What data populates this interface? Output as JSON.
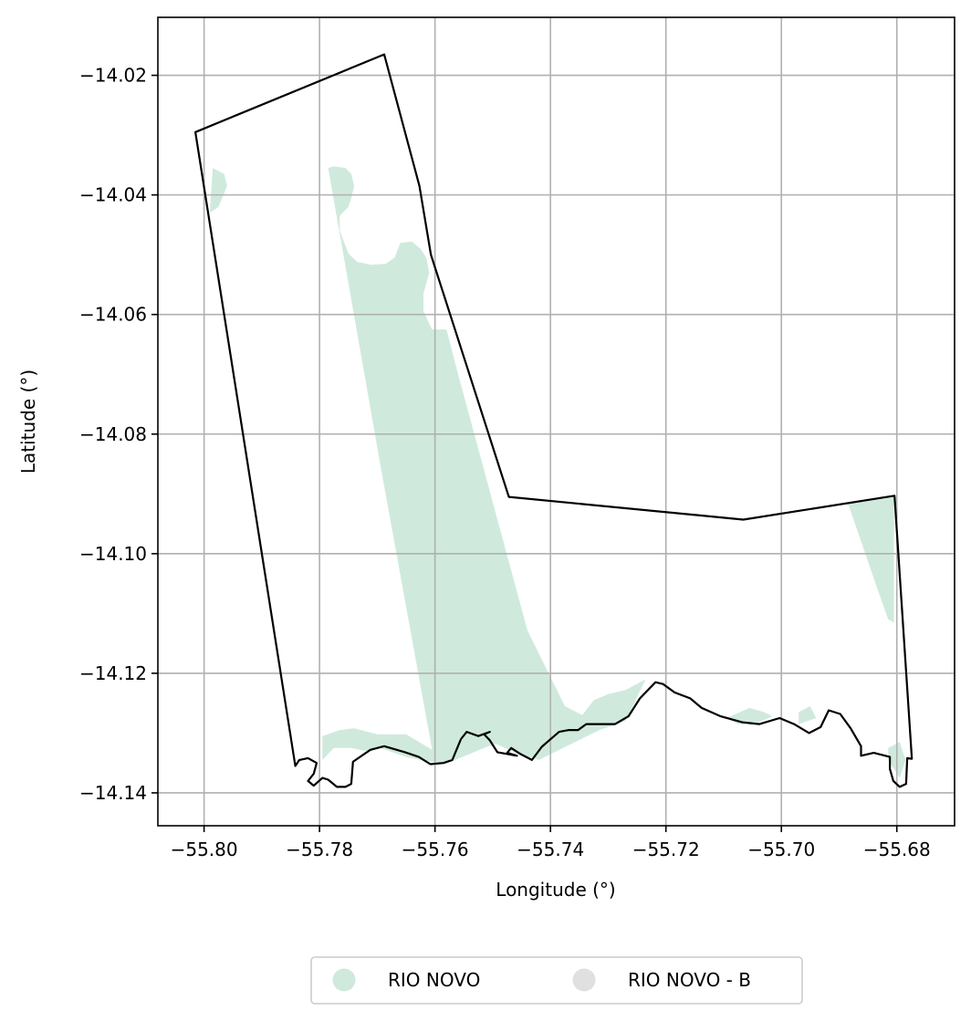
{
  "chart_data": {
    "type": "map",
    "xlabel": "Longitude (°)",
    "ylabel": "Latitude (°)",
    "xlim": [
      -55.808,
      -55.67
    ],
    "ylim": [
      -14.1455,
      -14.0103
    ],
    "grid": true,
    "x_ticks": [
      -55.8,
      -55.78,
      -55.76,
      -55.74,
      -55.72,
      -55.7,
      -55.68
    ],
    "y_ticks": [
      -14.02,
      -14.04,
      -14.06,
      -14.08,
      -14.1,
      -14.12,
      -14.14
    ],
    "x_tick_labels": [
      "−55.80",
      "−55.78",
      "−55.76",
      "−55.74",
      "−55.72",
      "−55.70",
      "−55.68"
    ],
    "y_tick_labels": [
      "−14.02",
      "−14.04",
      "−14.06",
      "−14.08",
      "−14.10",
      "−14.12",
      "−14.14"
    ],
    "legend_position": "bottom-center",
    "legend": [
      {
        "name": "RIO NOVO",
        "color": "#cfeadc"
      },
      {
        "name": "RIO NOVO - B",
        "color": "#e0e0e0"
      }
    ],
    "series": [
      {
        "name": "RIO NOVO",
        "color": "#cfeadc",
        "polygons": [
          [
            [
              -55.7785,
              -14.0355
            ],
            [
              -55.7775,
              -14.0352
            ],
            [
              -55.7755,
              -14.0355
            ],
            [
              -55.7745,
              -14.0365
            ],
            [
              -55.774,
              -14.0385
            ],
            [
              -55.7745,
              -14.0405
            ],
            [
              -55.775,
              -14.042
            ],
            [
              -55.7765,
              -14.0435
            ],
            [
              -55.7765,
              -14.046
            ],
            [
              -55.775,
              -14.0498
            ],
            [
              -55.7735,
              -14.0512
            ],
            [
              -55.771,
              -14.0517
            ],
            [
              -55.7685,
              -14.0515
            ],
            [
              -55.767,
              -14.0505
            ],
            [
              -55.766,
              -14.048
            ],
            [
              -55.764,
              -14.0478
            ],
            [
              -55.7625,
              -14.049
            ],
            [
              -55.7615,
              -14.0505
            ],
            [
              -55.761,
              -14.053
            ],
            [
              -55.762,
              -14.0565
            ],
            [
              -55.762,
              -14.0595
            ],
            [
              -55.7605,
              -14.0625
            ],
            [
              -55.758,
              -14.0625
            ],
            [
              -55.756,
              -14.07
            ],
            [
              -55.744,
              -14.1128
            ],
            [
              -55.7375,
              -14.1255
            ],
            [
              -55.7345,
              -14.127
            ],
            [
              -55.7325,
              -14.1245
            ],
            [
              -55.73,
              -14.1235
            ],
            [
              -55.727,
              -14.1228
            ],
            [
              -55.7235,
              -14.121
            ],
            [
              -55.727,
              -14.128
            ],
            [
              -55.7315,
              -14.1295
            ],
            [
              -55.742,
              -14.1345
            ],
            [
              -55.7455,
              -14.1335
            ],
            [
              -55.7495,
              -14.1318
            ],
            [
              -55.7515,
              -14.1325
            ],
            [
              -55.754,
              -14.1335
            ],
            [
              -55.7565,
              -14.1345
            ],
            [
              -55.7595,
              -14.135
            ],
            [
              -55.7625,
              -14.1345
            ],
            [
              -55.765,
              -14.134
            ],
            [
              -55.7695,
              -14.1325
            ],
            [
              -55.772,
              -14.133
            ],
            [
              -55.7745,
              -14.1325
            ],
            [
              -55.7775,
              -14.1325
            ],
            [
              -55.7795,
              -14.1345
            ],
            [
              -55.7795,
              -14.1305
            ],
            [
              -55.7765,
              -14.1295
            ],
            [
              -55.774,
              -14.1292
            ],
            [
              -55.77,
              -14.1302
            ],
            [
              -55.765,
              -14.1302
            ],
            [
              -55.7605,
              -14.1328
            ],
            [
              -55.7695,
              -14.085
            ],
            [
              -55.7785,
              -14.0355
            ]
          ],
          [
            [
              -55.7985,
              -14.0355
            ],
            [
              -55.7965,
              -14.0365
            ],
            [
              -55.796,
              -14.0385
            ],
            [
              -55.7975,
              -14.042
            ],
            [
              -55.799,
              -14.043
            ],
            [
              -55.7985,
              -14.0355
            ]
          ],
          [
            [
              -55.6885,
              -14.0915
            ],
            [
              -55.6805,
              -14.0902
            ],
            [
              -55.6805,
              -14.0985
            ],
            [
              -55.6805,
              -14.1115
            ],
            [
              -55.6815,
              -14.111
            ],
            [
              -55.6835,
              -14.1055
            ],
            [
              -55.6885,
              -14.0915
            ]
          ],
          [
            [
              -55.7095,
              -14.1275
            ],
            [
              -55.7055,
              -14.1258
            ],
            [
              -55.703,
              -14.1265
            ],
            [
              -55.7015,
              -14.1272
            ],
            [
              -55.704,
              -14.1282
            ],
            [
              -55.7075,
              -14.1285
            ],
            [
              -55.7095,
              -14.1275
            ]
          ],
          [
            [
              -55.697,
              -14.1265
            ],
            [
              -55.695,
              -14.1255
            ],
            [
              -55.694,
              -14.1275
            ],
            [
              -55.697,
              -14.1285
            ],
            [
              -55.697,
              -14.1265
            ]
          ],
          [
            [
              -55.6815,
              -14.1325
            ],
            [
              -55.6795,
              -14.1315
            ],
            [
              -55.6785,
              -14.1345
            ],
            [
              -55.6795,
              -14.1375
            ],
            [
              -55.6815,
              -14.1345
            ],
            [
              -55.6815,
              -14.1325
            ]
          ]
        ]
      },
      {
        "name": "RIO NOVO - B",
        "color": "#e0e0e0",
        "polygons": []
      }
    ],
    "boundary": [
      [
        -55.8015,
        -14.0295
      ],
      [
        -55.7688,
        -14.0165
      ],
      [
        -55.7627,
        -14.0385
      ],
      [
        -55.7607,
        -14.05
      ],
      [
        -55.7472,
        -14.0905
      ],
      [
        -55.7066,
        -14.0943
      ],
      [
        -55.6804,
        -14.0903
      ],
      [
        -55.6774,
        -14.1343
      ],
      [
        -55.6782,
        -14.1342
      ],
      [
        -55.6784,
        -14.1385
      ],
      [
        -55.6795,
        -14.139
      ],
      [
        -55.6806,
        -14.138
      ],
      [
        -55.6812,
        -14.136
      ],
      [
        -55.6812,
        -14.134
      ],
      [
        -55.684,
        -14.1333
      ],
      [
        -55.6862,
        -14.1338
      ],
      [
        -55.6862,
        -14.1322
      ],
      [
        -55.688,
        -14.1292
      ],
      [
        -55.6898,
        -14.1268
      ],
      [
        -55.6918,
        -14.1262
      ],
      [
        -55.6932,
        -14.129
      ],
      [
        -55.6952,
        -14.13
      ],
      [
        -55.6978,
        -14.1285
      ],
      [
        -55.7003,
        -14.1275
      ],
      [
        -55.7038,
        -14.1285
      ],
      [
        -55.7068,
        -14.1282
      ],
      [
        -55.7105,
        -14.1272
      ],
      [
        -55.7138,
        -14.1258
      ],
      [
        -55.7158,
        -14.1242
      ],
      [
        -55.7185,
        -14.1232
      ],
      [
        -55.7205,
        -14.1218
      ],
      [
        -55.7218,
        -14.1215
      ],
      [
        -55.7245,
        -14.1242
      ],
      [
        -55.7265,
        -14.1272
      ],
      [
        -55.7288,
        -14.1285
      ],
      [
        -55.731,
        -14.1285
      ],
      [
        -55.7338,
        -14.1285
      ],
      [
        -55.7352,
        -14.1295
      ],
      [
        -55.7368,
        -14.1295
      ],
      [
        -55.7385,
        -14.1298
      ],
      [
        -55.7402,
        -14.1312
      ],
      [
        -55.7415,
        -14.1323
      ],
      [
        -55.7432,
        -14.1345
      ],
      [
        -55.7452,
        -14.1335
      ],
      [
        -55.7468,
        -14.1325
      ],
      [
        -55.7475,
        -14.1333
      ],
      [
        -55.7458,
        -14.1338
      ],
      [
        -55.7492,
        -14.1332
      ],
      [
        -55.7505,
        -14.1312
      ],
      [
        -55.7515,
        -14.1302
      ],
      [
        -55.7505,
        -14.1298
      ],
      [
        -55.7525,
        -14.1305
      ],
      [
        -55.7545,
        -14.1298
      ],
      [
        -55.7555,
        -14.131
      ],
      [
        -55.757,
        -14.1345
      ],
      [
        -55.7585,
        -14.135
      ],
      [
        -55.7608,
        -14.1352
      ],
      [
        -55.7628,
        -14.134
      ],
      [
        -55.7652,
        -14.1332
      ],
      [
        -55.7688,
        -14.1322
      ],
      [
        -55.7712,
        -14.1328
      ],
      [
        -55.7742,
        -14.1348
      ],
      [
        -55.7745,
        -14.1385
      ],
      [
        -55.7755,
        -14.139
      ],
      [
        -55.777,
        -14.139
      ],
      [
        -55.7785,
        -14.1378
      ],
      [
        -55.7795,
        -14.1375
      ],
      [
        -55.781,
        -14.1388
      ],
      [
        -55.782,
        -14.138
      ],
      [
        -55.781,
        -14.1368
      ],
      [
        -55.7805,
        -14.135
      ],
      [
        -55.782,
        -14.1342
      ],
      [
        -55.7835,
        -14.1345
      ],
      [
        -55.7842,
        -14.1355
      ],
      [
        -55.8015,
        -14.0295
      ]
    ]
  }
}
